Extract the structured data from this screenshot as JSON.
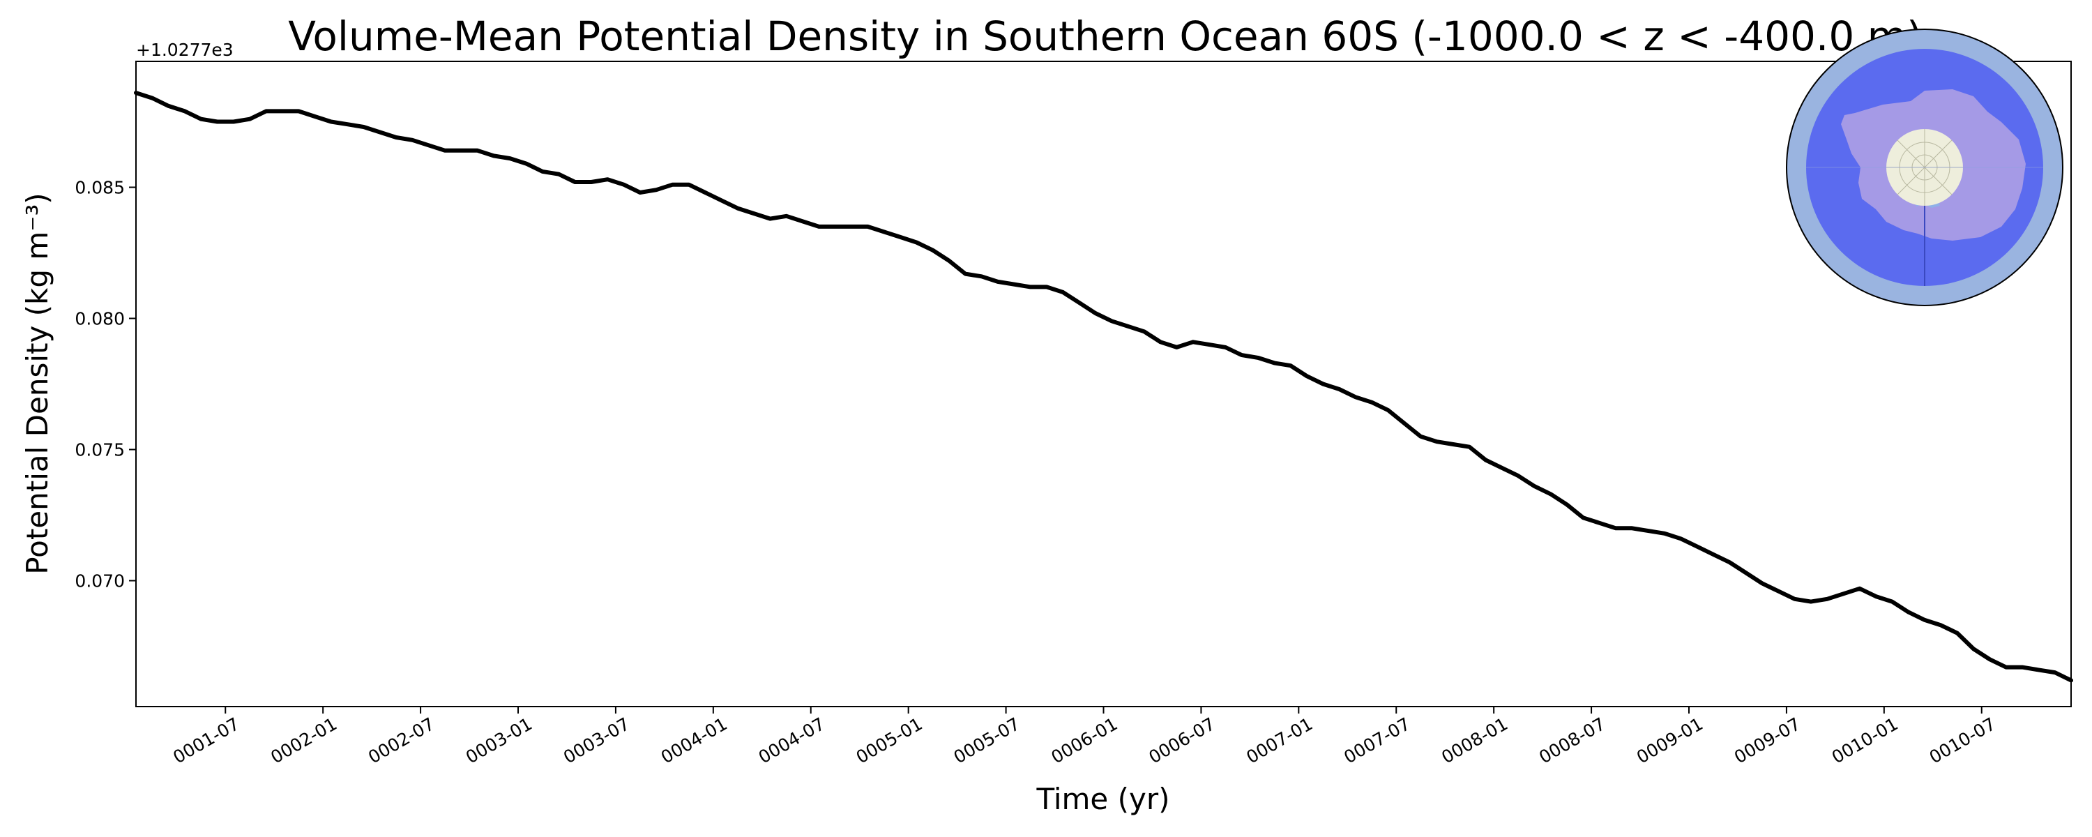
{
  "chart_data": {
    "type": "line",
    "title": "Volume-Mean Potential Density in Southern Ocean 60S (-1000.0 < z < -400.0 m)",
    "xlabel": "Time (yr)",
    "ylabel": "Potential Density (kg m⁻³)",
    "y_offset_text": "+1.0277e3",
    "x_tick_labels": [
      "0001-07",
      "0002-01",
      "0002-07",
      "0003-01",
      "0003-07",
      "0004-01",
      "0004-07",
      "0005-01",
      "0005-07",
      "0006-01",
      "0006-07",
      "0007-01",
      "0007-07",
      "0008-01",
      "0008-07",
      "0009-01",
      "0009-07",
      "0010-01",
      "0010-07"
    ],
    "x_tick_positions_months": [
      6,
      12,
      18,
      24,
      30,
      36,
      42,
      48,
      54,
      60,
      66,
      72,
      78,
      84,
      90,
      96,
      102,
      108,
      114
    ],
    "y_ticks": [
      0.07,
      0.075,
      0.08,
      0.085
    ],
    "y_tick_labels": [
      "0.070",
      "0.075",
      "0.080",
      "0.085"
    ],
    "xlim_months": [
      0.5,
      119.5
    ],
    "ylim": [
      0.0652,
      0.0898
    ],
    "grid": false,
    "line_color": "#000000",
    "series": [
      {
        "x_months": [
          0.5,
          1.5,
          2.5,
          3.5,
          4.5,
          5.5,
          6.5,
          7.5,
          8.5,
          9.5,
          10.5,
          11.5,
          12.5,
          13.5,
          14.5,
          15.5,
          16.5,
          17.5,
          18.5,
          19.5,
          20.5,
          21.5,
          22.5,
          23.5,
          24.5,
          25.5,
          26.5,
          27.5,
          28.5,
          29.5,
          30.5,
          31.5,
          32.5,
          33.5,
          34.5,
          35.5,
          36.5,
          37.5,
          38.5,
          39.5,
          40.5,
          41.5,
          42.5,
          43.5,
          44.5,
          45.5,
          46.5,
          47.5,
          48.5,
          49.5,
          50.5,
          51.5,
          52.5,
          53.5,
          54.5,
          55.5,
          56.5,
          57.5,
          58.5,
          59.5,
          60.5,
          61.5,
          62.5,
          63.5,
          64.5,
          65.5,
          66.5,
          67.5,
          68.5,
          69.5,
          70.5,
          71.5,
          72.5,
          73.5,
          74.5,
          75.5,
          76.5,
          77.5,
          78.5,
          79.5,
          80.5,
          81.5,
          82.5,
          83.5,
          84.5,
          85.5,
          86.5,
          87.5,
          88.5,
          89.5,
          90.5,
          91.5,
          92.5,
          93.5,
          94.5,
          95.5,
          96.5,
          97.5,
          98.5,
          99.5,
          100.5,
          101.5,
          102.5,
          103.5,
          104.5,
          105.5,
          106.5,
          107.5,
          108.5,
          109.5,
          110.5,
          111.5,
          112.5,
          113.5,
          114.5,
          115.5,
          116.5,
          117.5,
          118.5,
          119.5
        ],
        "values": [
          0.0886,
          0.0884,
          0.0881,
          0.0879,
          0.0876,
          0.0875,
          0.0875,
          0.0876,
          0.0879,
          0.0879,
          0.0879,
          0.0877,
          0.0875,
          0.0874,
          0.0873,
          0.0871,
          0.0869,
          0.0868,
          0.0866,
          0.0864,
          0.0864,
          0.0864,
          0.0862,
          0.0861,
          0.0859,
          0.0856,
          0.0855,
          0.0852,
          0.0852,
          0.0853,
          0.0851,
          0.0848,
          0.0849,
          0.0851,
          0.0851,
          0.0848,
          0.0845,
          0.0842,
          0.084,
          0.0838,
          0.0839,
          0.0837,
          0.0835,
          0.0835,
          0.0835,
          0.0835,
          0.0833,
          0.0831,
          0.0829,
          0.0826,
          0.0822,
          0.0817,
          0.0816,
          0.0814,
          0.0813,
          0.0812,
          0.0812,
          0.081,
          0.0806,
          0.0802,
          0.0799,
          0.0797,
          0.0795,
          0.0791,
          0.0789,
          0.0791,
          0.079,
          0.0789,
          0.0786,
          0.0785,
          0.0783,
          0.0782,
          0.0778,
          0.0775,
          0.0773,
          0.077,
          0.0768,
          0.0765,
          0.076,
          0.0755,
          0.0753,
          0.0752,
          0.0751,
          0.0746,
          0.0743,
          0.074,
          0.0736,
          0.0733,
          0.0729,
          0.0724,
          0.0722,
          0.072,
          0.072,
          0.0719,
          0.0718,
          0.0716,
          0.0713,
          0.071,
          0.0707,
          0.0703,
          0.0699,
          0.0696,
          0.0693,
          0.0692,
          0.0693,
          0.0695,
          0.0697,
          0.0694,
          0.0692,
          0.0688,
          0.0685,
          0.0683,
          0.068,
          0.0674,
          0.067,
          0.0667,
          0.0667,
          0.0666,
          0.0665,
          0.0662
        ]
      }
    ]
  },
  "inset_map": {
    "description_icon": "antarctica-polar-map-icon",
    "colors": {
      "outer_ring": "#9ab4e0",
      "ocean_region": "#5b6bef",
      "land": "#a59ae6",
      "pole_cap": "#eeeedc",
      "ice_shelf": "#8fb0e8",
      "border": "#000000"
    }
  }
}
